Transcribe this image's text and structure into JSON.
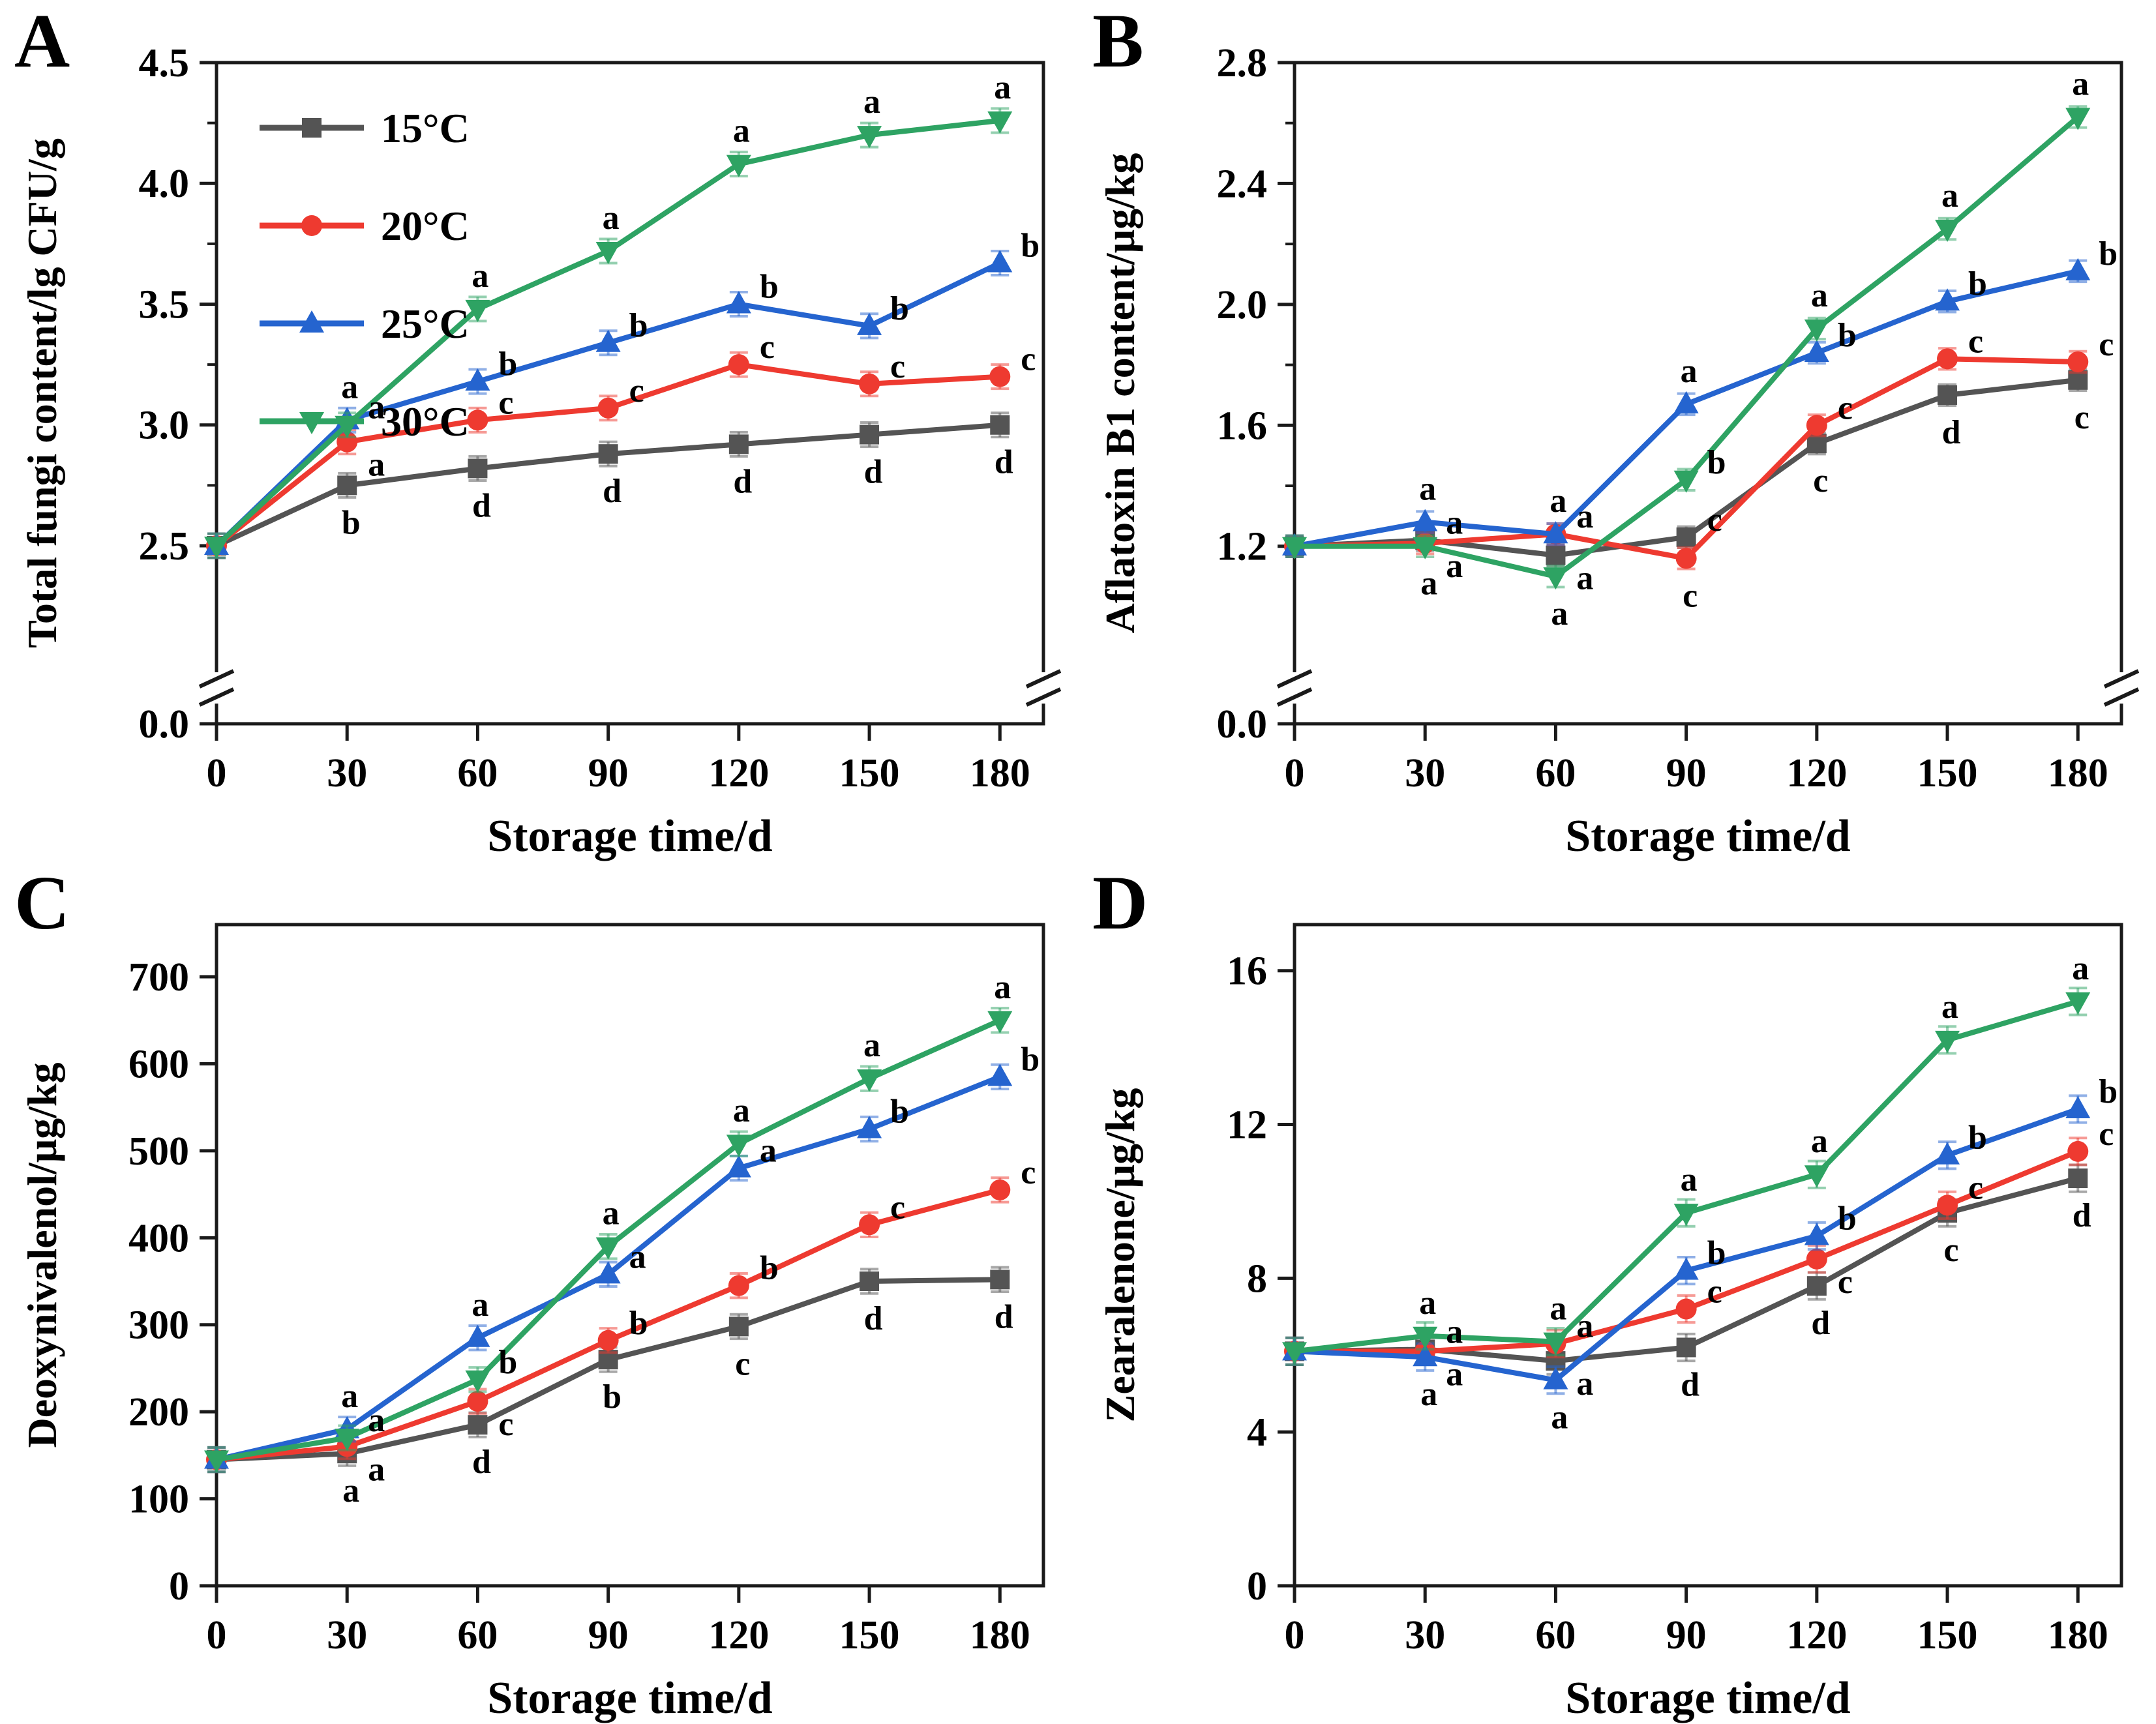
{
  "figure": {
    "background": "#ffffff",
    "x_axis_label": "Storage time/d",
    "legend_labels": [
      "15°C",
      "20°C",
      "25°C",
      "30°C"
    ],
    "series_colors": {
      "t15": "#545454",
      "t20": "#ee3a30",
      "t25": "#2564cf",
      "t30": "#2ea363"
    }
  },
  "chart_data": [
    {
      "panel_label": "A",
      "type": "line",
      "xlabel": "Storage time/d",
      "ylabel": "Total fungi content/lg CFU/g",
      "x": [
        0,
        30,
        60,
        90,
        120,
        150,
        180
      ],
      "x_tick_labels": [
        "0",
        "30",
        "60",
        "90",
        "120",
        "150",
        "180"
      ],
      "xlim": [
        0,
        190
      ],
      "ylim": [
        2.06,
        4.5
      ],
      "y_ticks": [
        2.5,
        3.0,
        3.5,
        4.0,
        4.5
      ],
      "y_tick_labels": [
        "2.5",
        "3.0",
        "3.5",
        "4.0",
        "4.5"
      ],
      "y_minor_step": 0.25,
      "y_axis_break": true,
      "y_bottom_tick_label": "0.0",
      "error_bar": 0.05,
      "legend_show": true,
      "legend_position": "top-left",
      "grid": false,
      "series": [
        {
          "name": "15°C",
          "color": "#545454",
          "marker": "square",
          "values": [
            2.5,
            2.75,
            2.82,
            2.88,
            2.92,
            2.96,
            3.0
          ],
          "letters": [
            "",
            "b",
            "d",
            "d",
            "d",
            "d",
            "d"
          ]
        },
        {
          "name": "20°C",
          "color": "#ee3a30",
          "marker": "circle",
          "values": [
            2.5,
            2.93,
            3.02,
            3.07,
            3.25,
            3.17,
            3.2
          ],
          "letters": [
            "",
            "a",
            "c",
            "c",
            "c",
            "c",
            "c"
          ]
        },
        {
          "name": "25°C",
          "color": "#2564cf",
          "marker": "triangle-up",
          "values": [
            2.5,
            3.02,
            3.18,
            3.34,
            3.5,
            3.41,
            3.67
          ],
          "letters": [
            "",
            "a",
            "b",
            "b",
            "b",
            "b",
            "b"
          ]
        },
        {
          "name": "30°C",
          "color": "#2ea363",
          "marker": "triangle-down",
          "values": [
            2.5,
            3.0,
            3.48,
            3.72,
            4.08,
            4.2,
            4.26
          ],
          "letters": [
            "",
            "a",
            "a",
            "a",
            "a",
            "a",
            "a"
          ]
        }
      ]
    },
    {
      "panel_label": "B",
      "type": "line",
      "xlabel": "Storage time/d",
      "ylabel": "Aflatoxin B1 content/μg/kg",
      "x": [
        0,
        30,
        60,
        90,
        120,
        150,
        180
      ],
      "x_tick_labels": [
        "0",
        "30",
        "60",
        "90",
        "120",
        "150",
        "180"
      ],
      "xlim": [
        0,
        190
      ],
      "ylim": [
        0.85,
        2.8
      ],
      "y_ticks": [
        1.2,
        1.6,
        2.0,
        2.4,
        2.8
      ],
      "y_tick_labels": [
        "1.2",
        "1.6",
        "2.0",
        "2.4",
        "2.8"
      ],
      "y_minor_step": 0.2,
      "y_axis_break": true,
      "y_bottom_tick_label": "0.0",
      "error_bar": 0.035,
      "legend_show": false,
      "grid": false,
      "series": [
        {
          "name": "15°C",
          "color": "#545454",
          "marker": "square",
          "values": [
            1.2,
            1.22,
            1.17,
            1.23,
            1.54,
            1.7,
            1.75
          ],
          "letters": [
            "",
            "a",
            "a",
            "c",
            "c",
            "d",
            "c"
          ]
        },
        {
          "name": "20°C",
          "color": "#ee3a30",
          "marker": "circle",
          "values": [
            1.2,
            1.21,
            1.24,
            1.16,
            1.6,
            1.82,
            1.81
          ],
          "letters": [
            "",
            "a",
            "a",
            "c",
            "c",
            "c",
            "c"
          ]
        },
        {
          "name": "25°C",
          "color": "#2564cf",
          "marker": "triangle-up",
          "values": [
            1.2,
            1.28,
            1.24,
            1.67,
            1.84,
            2.01,
            2.11
          ],
          "letters": [
            "",
            "a",
            "a",
            "a",
            "b",
            "b",
            "b"
          ]
        },
        {
          "name": "30°C",
          "color": "#2ea363",
          "marker": "triangle-down",
          "values": [
            1.2,
            1.2,
            1.1,
            1.42,
            1.92,
            2.25,
            2.62
          ],
          "letters": [
            "",
            "a",
            "a",
            "b",
            "a",
            "a",
            "a"
          ]
        }
      ]
    },
    {
      "panel_label": "C",
      "type": "line",
      "xlabel": "Storage time/d",
      "ylabel": "Deoxynivalenol/μg/kg",
      "x": [
        0,
        30,
        60,
        90,
        120,
        150,
        180
      ],
      "x_tick_labels": [
        "0",
        "30",
        "60",
        "90",
        "120",
        "150",
        "180"
      ],
      "xlim": [
        0,
        190
      ],
      "ylim": [
        0,
        760
      ],
      "y_ticks": [
        0,
        100,
        200,
        300,
        400,
        500,
        600,
        700
      ],
      "y_tick_labels": [
        "0",
        "100",
        "200",
        "300",
        "400",
        "500",
        "600",
        "700"
      ],
      "y_axis_break": false,
      "error_bar": 14,
      "legend_show": false,
      "grid": false,
      "series": [
        {
          "name": "15°C",
          "color": "#545454",
          "marker": "square",
          "values": [
            145,
            152,
            185,
            260,
            298,
            350,
            352
          ],
          "letters": [
            "",
            "a",
            "d",
            "b",
            "c",
            "d",
            "d"
          ]
        },
        {
          "name": "20°C",
          "color": "#ee3a30",
          "marker": "circle",
          "values": [
            145,
            160,
            212,
            282,
            345,
            415,
            455
          ],
          "letters": [
            "",
            "a",
            "c",
            "b",
            "b",
            "c",
            "c"
          ]
        },
        {
          "name": "25°C",
          "color": "#2564cf",
          "marker": "triangle-up",
          "values": [
            145,
            180,
            285,
            358,
            480,
            525,
            585
          ],
          "letters": [
            "",
            "a",
            "a",
            "a",
            "a",
            "b",
            "b"
          ]
        },
        {
          "name": "30°C",
          "color": "#2ea363",
          "marker": "triangle-down",
          "values": [
            145,
            170,
            237,
            390,
            508,
            583,
            650
          ],
          "letters": [
            "",
            "a",
            "b",
            "a",
            "a",
            "a",
            "a"
          ]
        }
      ]
    },
    {
      "panel_label": "D",
      "type": "line",
      "xlabel": "Storage time/d",
      "ylabel": "Zearalenone/μg/kg",
      "x": [
        0,
        30,
        60,
        90,
        120,
        150,
        180
      ],
      "x_tick_labels": [
        "0",
        "30",
        "60",
        "90",
        "120",
        "150",
        "180"
      ],
      "xlim": [
        0,
        190
      ],
      "ylim": [
        0,
        17.2
      ],
      "y_ticks": [
        0,
        4,
        8,
        12,
        16
      ],
      "y_tick_labels": [
        "0",
        "4",
        "8",
        "12",
        "16"
      ],
      "y_axis_break": false,
      "error_bar": 0.35,
      "legend_show": false,
      "grid": false,
      "series": [
        {
          "name": "15°C",
          "color": "#545454",
          "marker": "square",
          "values": [
            6.1,
            6.15,
            5.85,
            6.2,
            7.8,
            9.7,
            10.6
          ],
          "letters": [
            "",
            "a",
            "a",
            "d",
            "d",
            "c",
            "d"
          ]
        },
        {
          "name": "20°C",
          "color": "#ee3a30",
          "marker": "circle",
          "values": [
            6.1,
            6.1,
            6.3,
            7.2,
            8.5,
            9.9,
            11.3
          ],
          "letters": [
            "",
            "a",
            "a",
            "c",
            "c",
            "c",
            "c"
          ]
        },
        {
          "name": "25°C",
          "color": "#2564cf",
          "marker": "triangle-up",
          "values": [
            6.1,
            5.95,
            5.35,
            8.2,
            9.1,
            11.2,
            12.4
          ],
          "letters": [
            "",
            "a",
            "a",
            "b",
            "b",
            "b",
            "b"
          ]
        },
        {
          "name": "30°C",
          "color": "#2ea363",
          "marker": "triangle-down",
          "values": [
            6.1,
            6.5,
            6.35,
            9.7,
            10.7,
            14.2,
            15.2
          ],
          "letters": [
            "",
            "a",
            "a",
            "a",
            "a",
            "a",
            "a"
          ]
        }
      ]
    }
  ]
}
